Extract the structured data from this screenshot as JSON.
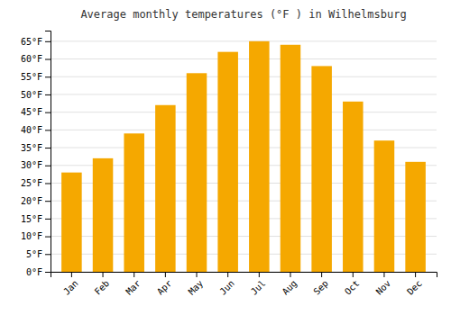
{
  "chart_data": {
    "type": "bar",
    "title": "Average monthly temperatures (°F ) in Wilhelmsburg",
    "categories": [
      "Jan",
      "Feb",
      "Mar",
      "Apr",
      "May",
      "Jun",
      "Jul",
      "Aug",
      "Sep",
      "Oct",
      "Nov",
      "Dec"
    ],
    "values": [
      28,
      32,
      39,
      47,
      56,
      62,
      65,
      64,
      58,
      48,
      37,
      31
    ],
    "color": "#F5A800",
    "ylim": [
      0,
      68
    ],
    "yticks": [
      {
        "value": 0,
        "label": "0°F"
      },
      {
        "value": 5,
        "label": "5°F"
      },
      {
        "value": 10,
        "label": "10°F"
      },
      {
        "value": 15,
        "label": "15°F"
      },
      {
        "value": 20,
        "label": "20°F"
      },
      {
        "value": 25,
        "label": "25°F"
      },
      {
        "value": 30,
        "label": "30°F"
      },
      {
        "value": 35,
        "label": "35°F"
      },
      {
        "value": 40,
        "label": "40°F"
      },
      {
        "value": 45,
        "label": "45°F"
      },
      {
        "value": 50,
        "label": "50°F"
      },
      {
        "value": 55,
        "label": "55°F"
      },
      {
        "value": 60,
        "label": "60°F"
      },
      {
        "value": 65,
        "label": "65°F"
      }
    ],
    "grid": true
  }
}
